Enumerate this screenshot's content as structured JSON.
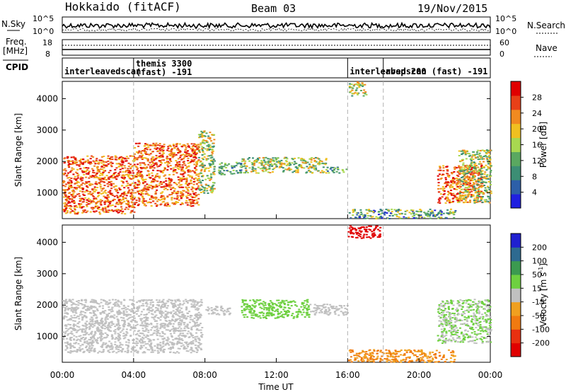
{
  "header": {
    "title": "Hokkaido (fitACF)",
    "beam": "Beam 03",
    "date": "19/Nov/2015"
  },
  "sky_panel": {
    "left_label": "N.Sky",
    "right_label": "N.Search",
    "left_ticks": [
      "10^5",
      "10^0"
    ],
    "right_ticks": [
      "10^5",
      "10^0"
    ]
  },
  "freq_panel": {
    "left_label_1": "Freq.",
    "left_label_2": "[MHz]",
    "right_label": "Nave",
    "left_ticks": [
      "18",
      "8"
    ],
    "right_ticks": [
      "60",
      "0"
    ]
  },
  "cpid_panel": {
    "label": "CPID",
    "segments": [
      {
        "text": "interleavedscan",
        "start_h": 0.0,
        "end_h": 4.0
      },
      {
        "text": "themis 3300\n(fast) -191",
        "start_h": 4.0,
        "end_h": 16.0
      },
      {
        "text": "interleavedscan (fast) -191",
        "start_h": 16.0,
        "end_h": 18.0
      },
      {
        "text": "rbsp 200",
        "start_h": 18.0,
        "end_h": 24.0
      }
    ]
  },
  "time_axis": {
    "label": "Time UT",
    "ticks": [
      "00:00",
      "04:00",
      "08:00",
      "12:00",
      "16:00",
      "20:00",
      "00:00"
    ]
  },
  "power_panel": {
    "ylabel": "Slant Range [km]",
    "yticks": [
      "1000",
      "2000",
      "3000",
      "4000"
    ],
    "colorbar_label": "Power [dB]",
    "colorbar_ticks": [
      "4",
      "8",
      "12",
      "16",
      "20",
      "24",
      "28"
    ]
  },
  "velocity_panel": {
    "ylabel": "Slant Range [km]",
    "yticks": [
      "1000",
      "2000",
      "3000",
      "4000"
    ],
    "colorbar_label": "Velocity [m s",
    "colorbar_label_sup": "-1",
    "colorbar_label_end": "]",
    "colorbar_ticks": [
      "200",
      "100",
      "50",
      "15",
      "-15",
      "-50",
      "-100",
      "-200"
    ]
  },
  "colors": {
    "power_scale": [
      "#2020e0",
      "#2d5fa8",
      "#3c8e74",
      "#5aa860",
      "#a8d850",
      "#f0c020",
      "#f08a20",
      "#e84018",
      "#e00000"
    ],
    "velocity_scale": [
      "#2020d0",
      "#2e6a90",
      "#3b9a50",
      "#6ed040",
      "#c0c0c0",
      "#f0a020",
      "#f07a10",
      "#e83010",
      "#e00000"
    ],
    "grid_dash": "#b0b0b0"
  },
  "chart_data": {
    "type": "heatmap",
    "x_range_hours": [
      0,
      24
    ],
    "y_range_km": [
      180,
      4550
    ],
    "vertical_dashed_lines_h": [
      4.0,
      16.0,
      18.0
    ],
    "power_features": [
      {
        "t0": 0.0,
        "t1": 4.0,
        "r0": 350,
        "r1": 2200,
        "level": "high"
      },
      {
        "t0": 4.0,
        "t1": 7.6,
        "r0": 600,
        "r1": 2600,
        "level": "high"
      },
      {
        "t0": 7.6,
        "t1": 8.5,
        "r0": 1000,
        "r1": 3000,
        "level": "medium"
      },
      {
        "t0": 8.7,
        "t1": 10.0,
        "r0": 1600,
        "r1": 2000,
        "level": "low"
      },
      {
        "t0": 10.0,
        "t1": 14.8,
        "r0": 1650,
        "r1": 2150,
        "level": "medium"
      },
      {
        "t0": 14.8,
        "t1": 15.9,
        "r0": 1650,
        "r1": 1850,
        "level": "low"
      },
      {
        "t0": 16.0,
        "t1": 17.0,
        "r0": 4100,
        "r1": 4550,
        "level": "medium"
      },
      {
        "t0": 21.0,
        "t1": 23.5,
        "r0": 700,
        "r1": 1900,
        "level": "high"
      },
      {
        "t0": 22.2,
        "t1": 24.0,
        "r0": 700,
        "r1": 2400,
        "level": "medium"
      },
      {
        "t0": 16.0,
        "t1": 22.0,
        "r0": 200,
        "r1": 500,
        "level": "ground"
      }
    ],
    "velocity_features": [
      {
        "t0": 0.0,
        "t1": 7.8,
        "r0": 500,
        "r1": 2200,
        "class": "near_zero"
      },
      {
        "t0": 8.0,
        "t1": 9.4,
        "r0": 1700,
        "r1": 2000,
        "class": "near_zero"
      },
      {
        "t0": 10.0,
        "t1": 13.8,
        "r0": 1600,
        "r1": 2200,
        "class": "positive_low"
      },
      {
        "t0": 13.8,
        "t1": 16.0,
        "r0": 1700,
        "r1": 2050,
        "class": "near_zero"
      },
      {
        "t0": 16.0,
        "t1": 17.8,
        "r0": 4150,
        "r1": 4550,
        "class": "negative_high"
      },
      {
        "t0": 21.0,
        "t1": 24.0,
        "r0": 800,
        "r1": 2200,
        "class": "mixed"
      },
      {
        "t0": 16.0,
        "t1": 22.0,
        "r0": 200,
        "r1": 600,
        "class": "negative_low"
      }
    ]
  }
}
